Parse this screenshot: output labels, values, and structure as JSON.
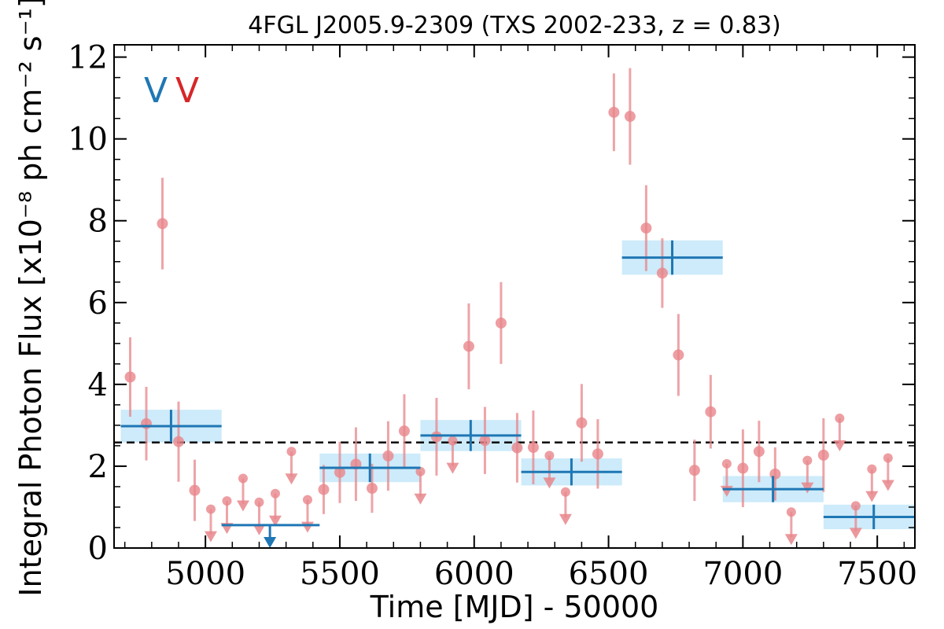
{
  "chart_data": {
    "type": "scatter",
    "title": "4FGL J2005.9-2309 (TXS 2002-233, z = 0.83)",
    "xlabel": "Time [MJD] - 50000",
    "ylabel": "Integral Photon Flux [x10⁻⁸ ph cm⁻² s⁻¹]",
    "xlim": [
      4660,
      7640
    ],
    "ylim": [
      0,
      12.3
    ],
    "x_ticks": [
      5000,
      5500,
      6000,
      6500,
      7000,
      7500
    ],
    "x_tick_labels": [
      "5000",
      "5500",
      "6000",
      "6500",
      "7000",
      "7500"
    ],
    "y_ticks": [
      0,
      2,
      4,
      6,
      8,
      10,
      12
    ],
    "y_tick_labels": [
      "0",
      "2",
      "4",
      "6",
      "8",
      "10",
      "12"
    ],
    "reference_line": {
      "y": 2.58,
      "style": "dashed",
      "color": "#000000"
    },
    "markers": [
      {
        "label": "V",
        "color": "#1f77b4"
      },
      {
        "label": "V",
        "color": "#d62728"
      }
    ],
    "series": [
      {
        "name": "",
        "style": "points",
        "color": "#e8868b",
        "points": [
          {
            "x": 4720,
            "y": 4.18,
            "yerr": 0.97
          },
          {
            "x": 4780,
            "y": 3.04,
            "yerr": 0.9
          },
          {
            "x": 4840,
            "y": 7.93,
            "yerr": 1.12
          },
          {
            "x": 4900,
            "y": 2.6,
            "yerr": 0.98
          },
          {
            "x": 4960,
            "y": 1.41,
            "yerr": 0.75
          },
          {
            "x": 5440,
            "y": 1.43,
            "yerr": 0.6
          },
          {
            "x": 5500,
            "y": 1.85,
            "yerr": 0.75
          },
          {
            "x": 5560,
            "y": 2.05,
            "yerr": 0.9
          },
          {
            "x": 5620,
            "y": 1.46,
            "yerr": 0.6
          },
          {
            "x": 5680,
            "y": 2.25,
            "yerr": 0.85
          },
          {
            "x": 5740,
            "y": 2.86,
            "yerr": 0.9
          },
          {
            "x": 5860,
            "y": 2.72,
            "yerr": 0.95
          },
          {
            "x": 5980,
            "y": 4.93,
            "yerr": 1.05
          },
          {
            "x": 6040,
            "y": 2.63,
            "yerr": 0.82
          },
          {
            "x": 6100,
            "y": 5.5,
            "yerr": 1.0
          },
          {
            "x": 6160,
            "y": 2.45,
            "yerr": 0.85
          },
          {
            "x": 6220,
            "y": 2.46,
            "yerr": 0.9
          },
          {
            "x": 6400,
            "y": 3.06,
            "yerr": 0.95
          },
          {
            "x": 6460,
            "y": 2.3,
            "yerr": 0.85
          },
          {
            "x": 6520,
            "y": 10.65,
            "yerr": 0.95
          },
          {
            "x": 6580,
            "y": 10.55,
            "yerr": 1.18
          },
          {
            "x": 6640,
            "y": 7.82,
            "yerr": 1.05
          },
          {
            "x": 6700,
            "y": 6.72,
            "yerr": 0.85
          },
          {
            "x": 6760,
            "y": 4.72,
            "yerr": 1.0
          },
          {
            "x": 6820,
            "y": 1.9,
            "yerr": 0.75
          },
          {
            "x": 6880,
            "y": 3.33,
            "yerr": 0.9
          },
          {
            "x": 7000,
            "y": 1.95,
            "yerr": 0.95
          },
          {
            "x": 7060,
            "y": 2.36,
            "yerr": 0.75
          },
          {
            "x": 7120,
            "y": 1.81,
            "yerr": 0.65
          },
          {
            "x": 7300,
            "y": 2.27,
            "yerr": 0.9
          }
        ]
      },
      {
        "name": "",
        "style": "upper-limits",
        "color": "#e8868b",
        "points": [
          {
            "x": 5020,
            "y": 0.95
          },
          {
            "x": 5080,
            "y": 1.15
          },
          {
            "x": 5140,
            "y": 1.7
          },
          {
            "x": 5200,
            "y": 1.12
          },
          {
            "x": 5260,
            "y": 1.33
          },
          {
            "x": 5320,
            "y": 2.36
          },
          {
            "x": 5380,
            "y": 1.18
          },
          {
            "x": 5800,
            "y": 1.87
          },
          {
            "x": 5920,
            "y": 2.62
          },
          {
            "x": 6280,
            "y": 2.26
          },
          {
            "x": 6340,
            "y": 1.37
          },
          {
            "x": 6940,
            "y": 2.06
          },
          {
            "x": 7180,
            "y": 0.88
          },
          {
            "x": 7240,
            "y": 2.14
          },
          {
            "x": 7360,
            "y": 3.17
          },
          {
            "x": 7420,
            "y": 1.03
          },
          {
            "x": 7480,
            "y": 1.93
          },
          {
            "x": 7540,
            "y": 2.2
          }
        ]
      },
      {
        "name": "",
        "style": "blocks",
        "color": "#1f77b4",
        "band_color": "#cdebfa",
        "blocks": [
          {
            "x0": 4685,
            "x1": 5060,
            "y": 2.98,
            "err": 0.4,
            "xc": 4872
          },
          {
            "x0": 5060,
            "x1": 5425,
            "y": 0.56,
            "upper_limit": true,
            "xc": 5240
          },
          {
            "x0": 5425,
            "x1": 5800,
            "y": 1.96,
            "err": 0.35,
            "xc": 5612
          },
          {
            "x0": 5800,
            "x1": 6175,
            "y": 2.75,
            "err": 0.38,
            "xc": 5987
          },
          {
            "x0": 6175,
            "x1": 6550,
            "y": 1.86,
            "err": 0.33,
            "xc": 6362
          },
          {
            "x0": 6550,
            "x1": 6925,
            "y": 7.1,
            "err": 0.42,
            "xc": 6737
          },
          {
            "x0": 6925,
            "x1": 7300,
            "y": 1.44,
            "err": 0.32,
            "xc": 7112
          },
          {
            "x0": 7300,
            "x1": 7675,
            "y": 0.76,
            "err": 0.3,
            "xc": 7487
          }
        ]
      }
    ]
  }
}
